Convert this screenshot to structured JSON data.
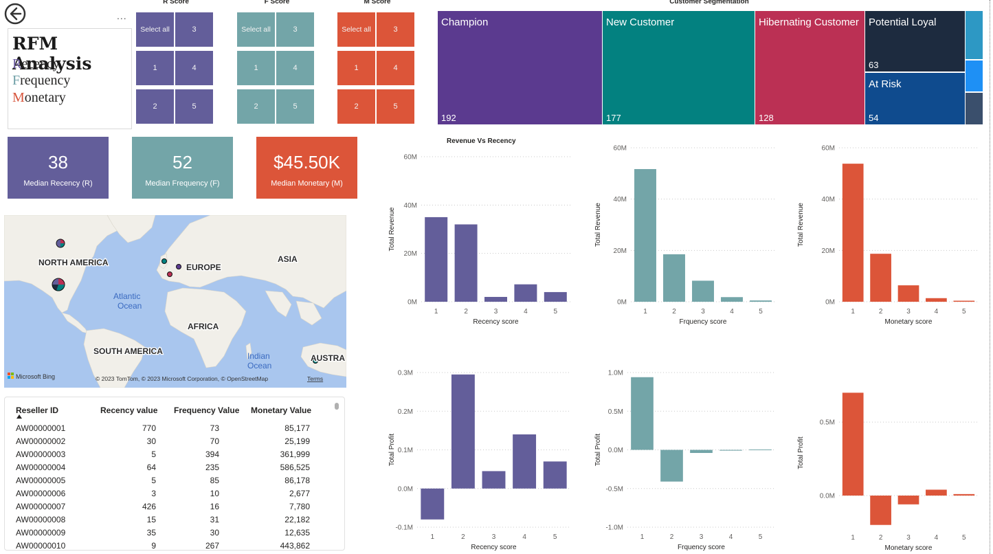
{
  "title_card": {
    "title": "RFM Analysis",
    "lines": [
      {
        "initial": "R",
        "rest": "ecency",
        "color": "#6b5ba0"
      },
      {
        "initial": "F",
        "rest": "requency",
        "color": "#6e9fa6"
      },
      {
        "initial": "M",
        "rest": "onetary",
        "color": "#d7553c"
      }
    ]
  },
  "more_options": "...",
  "slicers": [
    {
      "title": "R Score",
      "color": "#635e9a",
      "tiles": [
        "Select all",
        "3",
        "1",
        "4",
        "2",
        "5"
      ]
    },
    {
      "title": "F Score",
      "color": "#73a5a8",
      "tiles": [
        "Select all",
        "3",
        "1",
        "4",
        "2",
        "5"
      ]
    },
    {
      "title": "M Score",
      "color": "#dc5539",
      "tiles": [
        "Select all",
        "3",
        "1",
        "4",
        "2",
        "5"
      ]
    }
  ],
  "kpis": [
    {
      "value": "38",
      "label": "Median Recency (R)",
      "color": "#635e9a"
    },
    {
      "value": "52",
      "label": "Median Frequency (F)",
      "color": "#73a5a8"
    },
    {
      "value": "$45.50K",
      "label": "Median Monetary (M)",
      "color": "#dc5539"
    }
  ],
  "map": {
    "labels": {
      "north_america": "NORTH AMERICA",
      "europe": "EUROPE",
      "asia": "ASIA",
      "africa": "AFRICA",
      "south_america": "SOUTH AMERICA",
      "austra": "AUSTRA",
      "atlantic": "Atlantic",
      "ocean1": "Ocean",
      "indian": "Indian",
      "ocean2": "Ocean"
    },
    "brand": "Microsoft Bing",
    "copyright": "© 2023 TomTom, © 2023 Microsoft Corporation, © OpenStreetMap",
    "terms": "Terms"
  },
  "table": {
    "headers": [
      "Reseller ID",
      "Recency value",
      "Frequency Value",
      "Monetary Value"
    ],
    "rows": [
      [
        "AW00000001",
        "770",
        "73",
        "85,177"
      ],
      [
        "AW00000002",
        "30",
        "70",
        "25,199"
      ],
      [
        "AW00000003",
        "5",
        "394",
        "361,999"
      ],
      [
        "AW00000004",
        "64",
        "235",
        "586,525"
      ],
      [
        "AW00000005",
        "5",
        "85",
        "86,178"
      ],
      [
        "AW00000006",
        "3",
        "10",
        "2,677"
      ],
      [
        "AW00000007",
        "426",
        "16",
        "7,780"
      ],
      [
        "AW00000008",
        "15",
        "31",
        "22,182"
      ],
      [
        "AW00000009",
        "35",
        "30",
        "12,635"
      ],
      [
        "AW00000010",
        "9",
        "267",
        "443,862"
      ]
    ]
  },
  "treemap": {
    "title": "Customer Segmentation",
    "segments": [
      {
        "name": "Champion",
        "count": "192",
        "color": "#5b3a8f"
      },
      {
        "name": "New Customer",
        "count": "177",
        "color": "#038180"
      },
      {
        "name": "Hibernating Customer",
        "count": "128",
        "color": "#bb3054"
      },
      {
        "name": "Potential Loyal",
        "count": "63",
        "color": "#1d2b3f"
      },
      {
        "name": "At Risk",
        "count": "54",
        "color": "#0f4b8e"
      },
      {
        "name": "",
        "count": "",
        "color": "#2d98c4"
      },
      {
        "name": "",
        "count": "",
        "color": "#1e90f5"
      },
      {
        "name": "",
        "count": "",
        "color": "#3a4f6c"
      }
    ]
  },
  "chart_data": [
    {
      "type": "bar",
      "title": "Revenue Vs Recency",
      "xlabel": "Recency score",
      "ylabel": "Total Revenue",
      "color": "#635e9a",
      "categories": [
        "1",
        "2",
        "3",
        "4",
        "5"
      ],
      "values": [
        35000000,
        32000000,
        2000000,
        7200000,
        4000000
      ],
      "ylim": [
        0,
        60000000
      ],
      "ticks": [
        0,
        20000000,
        40000000,
        60000000
      ],
      "tick_labels": [
        "0M",
        "20M",
        "40M",
        "60M"
      ],
      "grid": true
    },
    {
      "type": "bar",
      "title": "",
      "xlabel": "Frquency score",
      "ylabel": "Total Revenue",
      "color": "#73a5a8",
      "categories": [
        "1",
        "2",
        "3",
        "4",
        "5"
      ],
      "values": [
        51700000,
        18500000,
        8200000,
        1800000,
        500000
      ],
      "ylim": [
        0,
        60000000
      ],
      "ticks": [
        0,
        20000000,
        40000000,
        60000000
      ],
      "tick_labels": [
        "0M",
        "20M",
        "40M",
        "60M"
      ],
      "grid": true
    },
    {
      "type": "bar",
      "title": "",
      "xlabel": "Monetary score",
      "ylabel": "Total Revenue",
      "color": "#dc5539",
      "categories": [
        "1",
        "2",
        "3",
        "4",
        "5"
      ],
      "values": [
        53800000,
        18700000,
        6400000,
        1400000,
        400000
      ],
      "ylim": [
        0,
        60000000
      ],
      "ticks": [
        0,
        20000000,
        40000000,
        60000000
      ],
      "tick_labels": [
        "0M",
        "20M",
        "40M",
        "60M"
      ],
      "grid": true
    },
    {
      "type": "bar",
      "title": "",
      "xlabel": "Recency score",
      "ylabel": "Total Profit",
      "color": "#635e9a",
      "categories": [
        "1",
        "2",
        "3",
        "4",
        "5"
      ],
      "values": [
        -80000,
        295000,
        45000,
        140000,
        70000
      ],
      "ylim": [
        -100000,
        300000
      ],
      "ticks": [
        -100000,
        0,
        100000,
        200000,
        300000
      ],
      "tick_labels": [
        "-0.1M",
        "0.0M",
        "0.1M",
        "0.2M",
        "0.3M"
      ],
      "grid": true
    },
    {
      "type": "bar",
      "title": "",
      "xlabel": "Frquency score",
      "ylabel": "Total Profit",
      "color": "#73a5a8",
      "categories": [
        "1",
        "2",
        "3",
        "4",
        "5"
      ],
      "values": [
        940000,
        -410000,
        -40000,
        -10000,
        5000
      ],
      "ylim": [
        -1000000,
        1000000
      ],
      "ticks": [
        -1000000,
        -500000,
        0,
        500000,
        1000000
      ],
      "tick_labels": [
        "-1.0M",
        "-0.5M",
        "0.0M",
        "0.5M",
        "1.0M"
      ],
      "grid": true
    },
    {
      "type": "bar",
      "title": "",
      "xlabel": "Monetary score",
      "ylabel": "Total Profit",
      "color": "#dc5539",
      "categories": [
        "1",
        "2",
        "3",
        "4",
        "5"
      ],
      "values": [
        700000,
        -200000,
        -60000,
        40000,
        10000
      ],
      "ylim": [
        -220000,
        800000
      ],
      "ticks": [
        0,
        500000
      ],
      "tick_labels": [
        "0.0M",
        "0.5M"
      ],
      "grid": true
    }
  ]
}
